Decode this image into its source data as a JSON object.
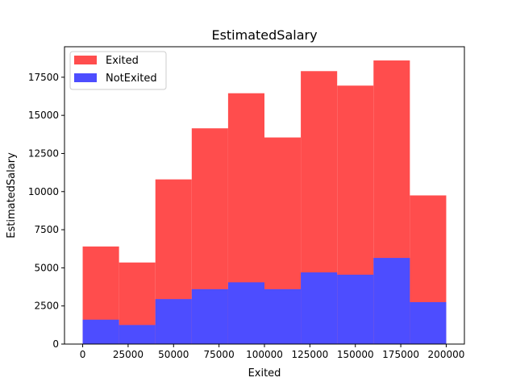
{
  "chart_data": {
    "type": "bar",
    "title": "EstimatedSalary",
    "xlabel": "Exited",
    "ylabel": "EstimatedSalary",
    "xlim": [
      -10000,
      210000
    ],
    "ylim": [
      0,
      19500
    ],
    "xticks": [
      0,
      25000,
      50000,
      75000,
      100000,
      125000,
      150000,
      175000,
      200000
    ],
    "yticks": [
      0,
      2500,
      5000,
      7500,
      10000,
      12500,
      15000,
      17500
    ],
    "bin_edges": [
      0,
      20000,
      40000,
      60000,
      80000,
      100000,
      120000,
      140000,
      160000,
      180000,
      200000
    ],
    "legend_position": "top-left",
    "grid": false,
    "series": [
      {
        "name": "Exited",
        "color": "#ff4d4d",
        "values": [
          6400,
          5350,
          10800,
          14150,
          16450,
          13550,
          17900,
          16950,
          18600,
          9750
        ]
      },
      {
        "name": "NotExited",
        "color": "#4d4dff",
        "values": [
          1600,
          1250,
          2950,
          3600,
          4050,
          3600,
          4700,
          4550,
          5650,
          2750
        ]
      }
    ]
  }
}
